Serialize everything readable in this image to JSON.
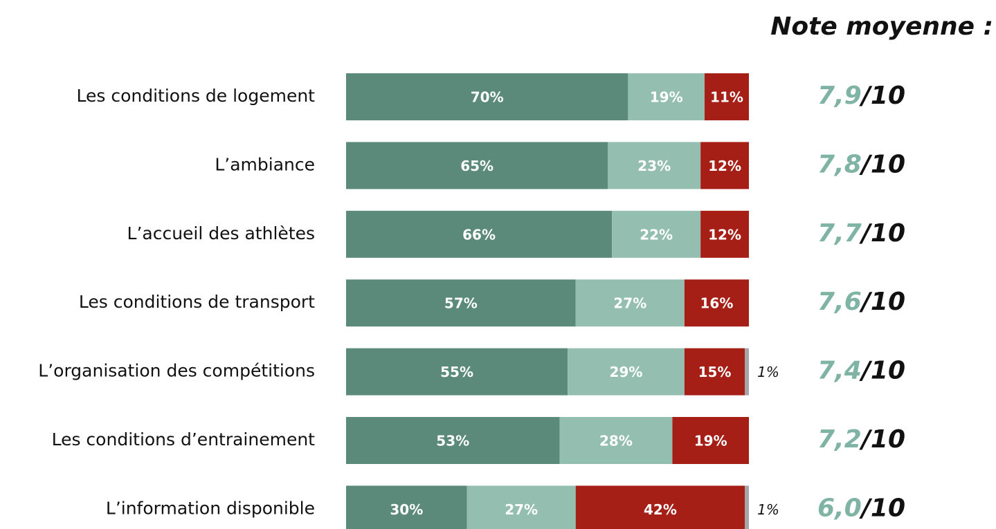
{
  "chart_data": {
    "type": "bar",
    "orientation": "horizontal",
    "stacked": true,
    "categories": [
      "Les conditions de logement",
      "L’ambiance",
      "L’accueil des athlètes",
      "Les conditions de transport",
      "L’organisation des compétitions",
      "Les conditions d’entrainement",
      "L’information disponible"
    ],
    "xlim": [
      0,
      100
    ],
    "series": [
      {
        "color": "#5b8a7a",
        "values": [
          70,
          65,
          66,
          57,
          55,
          53,
          30
        ],
        "value_labels": [
          "70%",
          "65%",
          "66%",
          "57%",
          "55%",
          "53%",
          "30%"
        ]
      },
      {
        "color": "#94bfb0",
        "values": [
          19,
          23,
          22,
          27,
          29,
          28,
          27
        ],
        "value_labels": [
          "19%",
          "23%",
          "22%",
          "27%",
          "29%",
          "28%",
          "27%"
        ]
      },
      {
        "color": "#a61f16",
        "values": [
          11,
          12,
          12,
          16,
          15,
          19,
          42
        ],
        "value_labels": [
          "11%",
          "12%",
          "12%",
          "16%",
          "15%",
          "19%",
          "42%"
        ]
      },
      {
        "color": "#a6a6a6",
        "values": [
          null,
          null,
          null,
          null,
          1,
          null,
          1
        ],
        "value_labels": [
          null,
          null,
          null,
          null,
          "1%",
          null,
          "1%"
        ]
      }
    ],
    "notes": {
      "title": "Note moyenne :",
      "color": "#7fb3a4",
      "values": [
        7.9,
        7.8,
        7.7,
        7.6,
        7.4,
        7.2,
        6.0
      ],
      "value_labels": [
        "7,9",
        "7,8",
        "7,7",
        "7,6",
        "7,4",
        "7,2",
        "6,0"
      ],
      "suffixes": [
        "/10",
        "/10",
        "/10",
        "/10",
        "/10",
        "/10",
        "/10"
      ]
    }
  }
}
